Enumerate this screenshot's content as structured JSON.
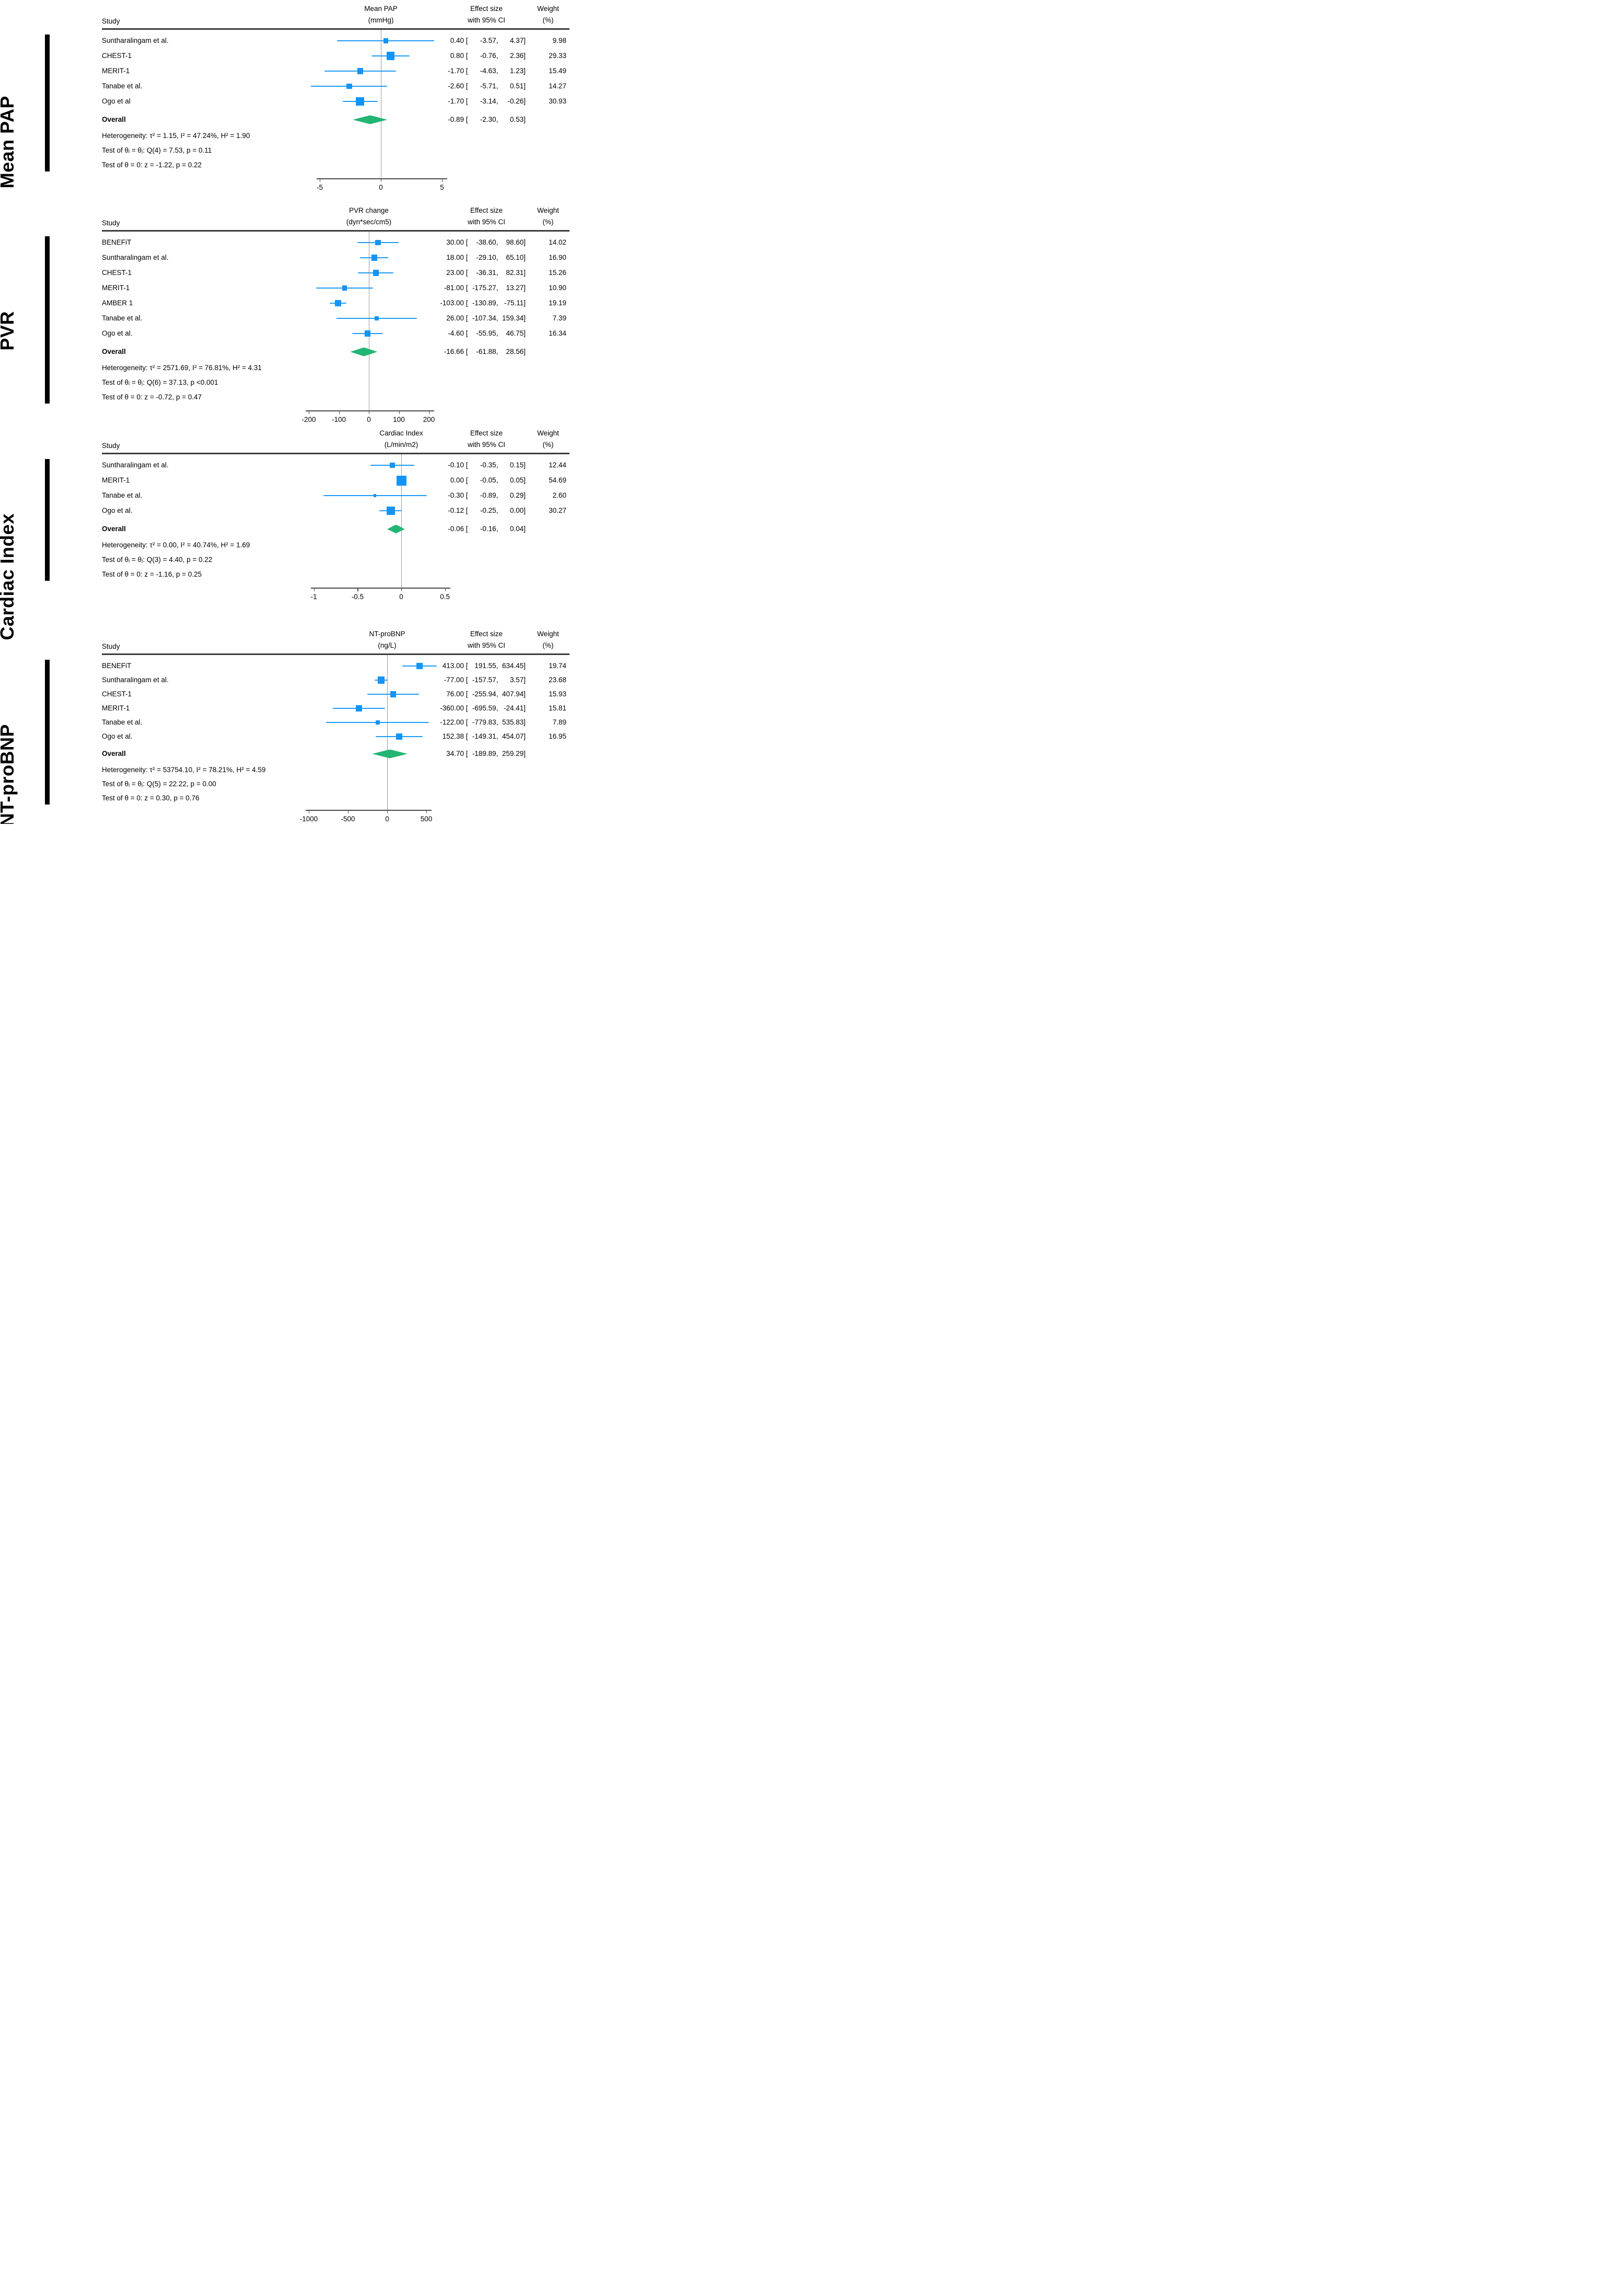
{
  "figure": {
    "study_header": "Study",
    "effect_header_line1": "Effect size",
    "effect_header_line2": "with 95% CI",
    "weight_header_line1": "Weight",
    "weight_header_line2": "(%)",
    "overall_label": "Overall"
  },
  "colors": {
    "marker_blue": "#1494F8",
    "ci_blue": "#1E9BF7",
    "diamond_green": "#22B573",
    "axis_gray": "#4a4a4a",
    "zero_line_gray": "#9a9a9a",
    "header_rule": "#3b3b3b",
    "section_black": "#000000"
  },
  "chart_data": [
    {
      "type": "forest",
      "section_label": "Mean PAP",
      "measure_header": [
        "Mean PAP",
        "(mmHg)"
      ],
      "studies": [
        {
          "name": "Suntharalingam et al.",
          "est": "0.40",
          "lo": "-3.57",
          "hi": "4.37",
          "weight": "9.98"
        },
        {
          "name": "CHEST-1",
          "est": "0.80",
          "lo": "-0.76",
          "hi": "2.36",
          "weight": "29.33"
        },
        {
          "name": "MERIT-1",
          "est": "-1.70",
          "lo": "-4.63",
          "hi": "1.23",
          "weight": "15.49"
        },
        {
          "name": "Tanabe et al.",
          "est": "-2.60",
          "lo": "-5.71",
          "hi": "0.51",
          "weight": "14.27"
        },
        {
          "name": "Ogo et al",
          "est": "-1.70",
          "lo": "-3.14",
          "hi": "-0.26",
          "weight": "30.93"
        }
      ],
      "overall": {
        "label": "Overall",
        "est": "-0.89",
        "lo": "-2.30",
        "hi": "0.53"
      },
      "heterogeneity": [
        "Heterogeneity: τ² = 1.15, I² = 47.24%, H² = 1.90",
        "Test of θᵢ = θⱼ: Q(4) = 7.53, p = 0.11",
        "Test of θ = 0: z = -1.22, p = 0.22"
      ],
      "axis": {
        "ticks": [
          -5,
          0,
          5
        ],
        "tick_labels": [
          "-5",
          "0",
          "5"
        ]
      }
    },
    {
      "type": "forest",
      "section_label": "PVR",
      "measure_header": [
        "PVR change",
        "(dyn*sec/cm5)"
      ],
      "studies": [
        {
          "name": "BENEFiT",
          "est": "30.00",
          "lo": "-38.60",
          "hi": "98.60",
          "weight": "14.02"
        },
        {
          "name": "Suntharalingam et al.",
          "est": "18.00",
          "lo": "-29.10",
          "hi": "65.10",
          "weight": "16.90"
        },
        {
          "name": "CHEST-1",
          "est": "23.00",
          "lo": "-36.31",
          "hi": "82.31",
          "weight": "15.26"
        },
        {
          "name": "MERIT-1",
          "est": "-81.00",
          "lo": "-175.27",
          "hi": "13.27",
          "weight": "10.90"
        },
        {
          "name": "AMBER 1",
          "est": "-103.00",
          "lo": "-130.89",
          "hi": "-75.11",
          "weight": "19.19"
        },
        {
          "name": "Tanabe et al.",
          "est": "26.00",
          "lo": "-107.34",
          "hi": "159.34",
          "weight": "7.39"
        },
        {
          "name": "Ogo et al.",
          "est": "-4.60",
          "lo": "-55.95",
          "hi": "46.75",
          "weight": "16.34"
        }
      ],
      "overall": {
        "label": "Overall",
        "est": "-16.66",
        "lo": "-61.88",
        "hi": "28.56"
      },
      "heterogeneity": [
        "Heterogeneity: τ² = 2571.69, I² = 76.81%, H² = 4.31",
        "Test of θᵢ = θⱼ: Q(6) = 37.13, p <0.001",
        "Test of θ = 0: z = -0.72, p = 0.47"
      ],
      "axis": {
        "ticks": [
          -200,
          -100,
          0,
          100,
          200
        ],
        "tick_labels": [
          "-200",
          "-100",
          "0",
          "100",
          "200"
        ]
      }
    },
    {
      "type": "forest",
      "section_label": "Cardiac Index",
      "measure_header": [
        "Cardiac Index",
        "(L/min/m2)"
      ],
      "studies": [
        {
          "name": "Suntharalingam et al.",
          "est": "-0.10",
          "lo": "-0.35",
          "hi": "0.15",
          "weight": "12.44"
        },
        {
          "name": "MERIT-1",
          "est": "0.00",
          "lo": "-0.05",
          "hi": "0.05",
          "weight": "54.69"
        },
        {
          "name": "Tanabe et al.",
          "est": "-0.30",
          "lo": "-0.89",
          "hi": "0.29",
          "weight": "2.60"
        },
        {
          "name": "Ogo et al.",
          "est": "-0.12",
          "lo": "-0.25",
          "hi": "0.00",
          "weight": "30.27"
        }
      ],
      "overall": {
        "label": "Overall",
        "est": "-0.06",
        "lo": "-0.16",
        "hi": "0.04"
      },
      "heterogeneity": [
        "Heterogeneity: τ² = 0.00, I² = 40.74%, H² = 1.69",
        "Test of θᵢ = θⱼ: Q(3) = 4.40, p = 0.22",
        "Test of θ = 0: z = -1.16, p = 0.25"
      ],
      "axis": {
        "ticks": [
          -1,
          -0.5,
          0,
          0.5
        ],
        "tick_labels": [
          "-1",
          "-0.5",
          "0",
          "0.5"
        ]
      }
    },
    {
      "type": "forest",
      "section_label": "NT-proBNP",
      "measure_header": [
        "NT-proBNP",
        "(ng/L)"
      ],
      "studies": [
        {
          "name": "BENEFiT",
          "est": "413.00",
          "lo": "191.55",
          "hi": "634.45",
          "weight": "19.74"
        },
        {
          "name": "Suntharalingam et al.",
          "est": "-77.00",
          "lo": "-157.57",
          "hi": "3.57",
          "weight": "23.68"
        },
        {
          "name": "CHEST-1",
          "est": "76.00",
          "lo": "-255.94",
          "hi": "407.94",
          "weight": "15.93"
        },
        {
          "name": "MERIT-1",
          "est": "-360.00",
          "lo": "-695.59",
          "hi": "-24.41",
          "weight": "15.81"
        },
        {
          "name": "Tanabe et al.",
          "est": "-122.00",
          "lo": "-779.83",
          "hi": "535.83",
          "weight": "7.89"
        },
        {
          "name": "Ogo et al.",
          "est": "152.38",
          "lo": "-149.31",
          "hi": "454.07",
          "weight": "16.95"
        }
      ],
      "overall": {
        "label": "Overall",
        "est": "34.70",
        "lo": "-189.89",
        "hi": "259.29"
      },
      "heterogeneity": [
        "Heterogeneity: τ² = 53754.10, I² = 78.21%, H² = 4.59",
        "Test of θᵢ = θⱼ: Q(5) = 22.22, p = 0.00",
        "Test of θ = 0: z = 0.30, p = 0.76"
      ],
      "axis": {
        "ticks": [
          -1000,
          -500,
          0,
          500
        ],
        "tick_labels": [
          "-1000",
          "-500",
          "0",
          "500"
        ]
      }
    }
  ]
}
